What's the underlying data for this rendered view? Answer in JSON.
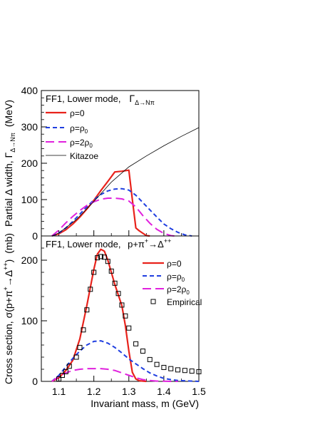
{
  "chart_data": [
    {
      "type": "line",
      "panel": "top",
      "annotation": {
        "prefix": "FF1,   Lower mode,",
        "symbol": "Γ",
        "subscript": "Δ→Nπ"
      },
      "ylabel": {
        "text": "Partial Δ width,",
        "symbol": "Γ",
        "subscript": "Δ→Nπ",
        "unit": "(MeV)"
      },
      "xlim": [
        1.05,
        1.5
      ],
      "ylim": [
        0,
        400
      ],
      "yticks": [
        0,
        100,
        200,
        300,
        400
      ],
      "x_ticks_labeled": false,
      "legend_placement": "top-left",
      "series": [
        {
          "name": "ρ=0",
          "color": "#e8221b",
          "dash": "solid",
          "width": 2.2,
          "x": [
            1.08,
            1.1,
            1.12,
            1.14,
            1.16,
            1.18,
            1.2,
            1.22,
            1.24,
            1.26,
            1.28,
            1.3,
            1.31,
            1.32,
            1.33,
            1.35,
            1.36
          ],
          "y": [
            0,
            6,
            17,
            33,
            52,
            74,
            98,
            125,
            150,
            176,
            178,
            181,
            100,
            22,
            14,
            1,
            0
          ]
        },
        {
          "name": "ρ=ρ",
          "sub": "0",
          "color": "#1f3ee0",
          "dash": "6,4",
          "width": 2,
          "x": [
            1.08,
            1.1,
            1.12,
            1.14,
            1.16,
            1.18,
            1.2,
            1.22,
            1.24,
            1.26,
            1.28,
            1.3,
            1.32,
            1.34,
            1.36,
            1.38,
            1.4,
            1.42,
            1.44,
            1.46,
            1.48
          ],
          "y": [
            0,
            8,
            22,
            40,
            60,
            80,
            99,
            114,
            124,
            129,
            130,
            126,
            112,
            92,
            72,
            52,
            33,
            20,
            10,
            3,
            0
          ]
        },
        {
          "name": "ρ=2ρ",
          "sub": "0",
          "color": "#e021dd",
          "dash": "12,6",
          "width": 2,
          "x": [
            1.08,
            1.1,
            1.12,
            1.14,
            1.16,
            1.18,
            1.2,
            1.22,
            1.24,
            1.26,
            1.28,
            1.3,
            1.32,
            1.34,
            1.36,
            1.38,
            1.4,
            1.42,
            1.43
          ],
          "y": [
            0,
            16,
            36,
            54,
            70,
            84,
            94,
            101,
            104,
            104,
            102,
            96,
            80,
            56,
            35,
            18,
            7,
            1,
            0
          ]
        },
        {
          "name": "Kitazoe",
          "color": "#000000",
          "dash": "solid",
          "width": 0.8,
          "x": [
            1.08,
            1.1,
            1.15,
            1.2,
            1.25,
            1.3,
            1.35,
            1.4,
            1.45,
            1.5
          ],
          "y": [
            0,
            8,
            45,
            95,
            148,
            190,
            220,
            248,
            274,
            298
          ]
        }
      ]
    },
    {
      "type": "line",
      "panel": "bottom",
      "annotation": {
        "prefix": "FF1,   Lower mode,",
        "reaction": "p+π",
        "sup1": "+",
        "arrow": "→Δ",
        "sup2": "++"
      },
      "ylabel": {
        "text": "Cross section,",
        "symbol": "σ(p+π",
        "sup1": "+",
        "arrow": "→Δ",
        "sup2": "++",
        "close": ")",
        "unit": "(mb)"
      },
      "xlabel": "Invariant mass,  m (GeV)",
      "xlim": [
        1.05,
        1.5
      ],
      "ylim": [
        0,
        240
      ],
      "xticks": [
        1.1,
        1.2,
        1.3,
        1.4,
        1.5
      ],
      "xtick_labels": [
        "1.1",
        "1.2",
        "1.3",
        "1.4",
        "1.5"
      ],
      "yticks": [
        0,
        100,
        200
      ],
      "legend_placement": "top-right",
      "series": [
        {
          "name": "ρ=0",
          "color": "#e8221b",
          "dash": "solid",
          "width": 2.2,
          "x": [
            1.08,
            1.1,
            1.12,
            1.14,
            1.16,
            1.18,
            1.2,
            1.21,
            1.22,
            1.23,
            1.24,
            1.25,
            1.26,
            1.28,
            1.29,
            1.3,
            1.31,
            1.32,
            1.33,
            1.35
          ],
          "y": [
            0,
            6,
            18,
            35,
            70,
            125,
            185,
            210,
            218,
            215,
            200,
            180,
            160,
            125,
            92,
            50,
            15,
            4,
            1,
            0
          ]
        },
        {
          "name": "ρ=ρ",
          "sub": "0",
          "color": "#1f3ee0",
          "dash": "6,4",
          "width": 2,
          "x": [
            1.08,
            1.1,
            1.12,
            1.14,
            1.16,
            1.18,
            1.2,
            1.22,
            1.24,
            1.26,
            1.28,
            1.3,
            1.32,
            1.34,
            1.36,
            1.38,
            1.4,
            1.42,
            1.44,
            1.46,
            1.48,
            1.5
          ],
          "y": [
            0,
            10,
            24,
            38,
            50,
            60,
            66,
            67,
            63,
            56,
            47,
            37,
            29,
            21,
            14,
            9,
            5,
            3,
            1.5,
            1,
            0.5,
            0
          ]
        },
        {
          "name": "ρ=2ρ",
          "sub": "0",
          "color": "#e021dd",
          "dash": "12,6",
          "width": 2,
          "x": [
            1.08,
            1.1,
            1.12,
            1.14,
            1.16,
            1.18,
            1.2,
            1.22,
            1.24,
            1.26,
            1.28,
            1.3,
            1.32,
            1.34,
            1.36,
            1.38,
            1.4,
            1.42,
            1.44
          ],
          "y": [
            0,
            8,
            14,
            18,
            20,
            21,
            21,
            21,
            20,
            18,
            14,
            10,
            6,
            3,
            1.5,
            0.5,
            0.2,
            0,
            0
          ]
        },
        {
          "name": "Empirical",
          "marker": "open-square",
          "color": "#000000",
          "x": [
            1.1,
            1.11,
            1.12,
            1.13,
            1.15,
            1.16,
            1.17,
            1.18,
            1.19,
            1.2,
            1.21,
            1.22,
            1.23,
            1.24,
            1.25,
            1.26,
            1.27,
            1.28,
            1.29,
            1.3,
            1.32,
            1.34,
            1.36,
            1.38,
            1.4,
            1.42,
            1.44,
            1.46,
            1.48,
            1.5
          ],
          "y": [
            4,
            10,
            16,
            25,
            40,
            56,
            85,
            118,
            152,
            180,
            204,
            206,
            205,
            198,
            182,
            162,
            145,
            126,
            108,
            88,
            62,
            50,
            36,
            28,
            23,
            21,
            19,
            18,
            17,
            16
          ]
        }
      ]
    }
  ]
}
